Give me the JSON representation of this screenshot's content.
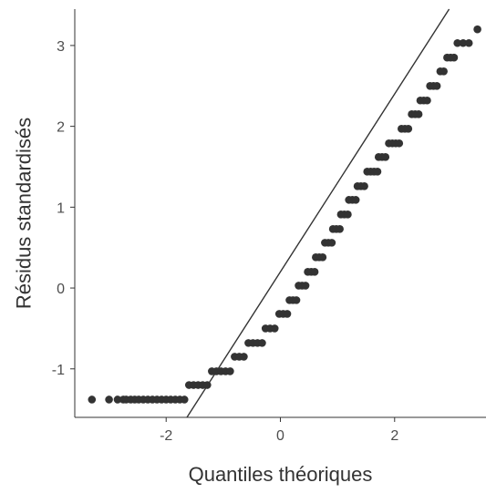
{
  "chart_data": {
    "type": "scatter",
    "title": "",
    "xlabel": "Quantiles théoriques",
    "ylabel": "Résidus standardisés",
    "xlim": [
      -3.6,
      3.6
    ],
    "ylim": [
      -1.6,
      3.45
    ],
    "x_ticks": [
      -2,
      0,
      2
    ],
    "x_tick_labels": [
      "-2",
      "0",
      "2"
    ],
    "y_ticks": [
      -1,
      0,
      1,
      2,
      3
    ],
    "y_tick_labels": [
      "-1",
      "0",
      "1",
      "2",
      "3"
    ],
    "grid": false,
    "legend": "none",
    "reference_line": {
      "slope": 1.1,
      "intercept": 0.2
    },
    "point_color": "#333333",
    "line_color": "#333333",
    "series": [
      {
        "points": [
          [
            -3.3,
            -1.38
          ],
          [
            -3.0,
            -1.38
          ],
          [
            -2.85,
            -1.38
          ],
          [
            -2.75,
            -1.38
          ],
          [
            -2.7,
            -1.38
          ],
          [
            -2.62,
            -1.38
          ],
          [
            -2.55,
            -1.38
          ],
          [
            -2.48,
            -1.38
          ],
          [
            -2.4,
            -1.38
          ],
          [
            -2.32,
            -1.38
          ],
          [
            -2.24,
            -1.38
          ],
          [
            -2.16,
            -1.38
          ],
          [
            -2.08,
            -1.38
          ],
          [
            -2.0,
            -1.38
          ],
          [
            -1.92,
            -1.38
          ],
          [
            -1.84,
            -1.38
          ],
          [
            -1.76,
            -1.38
          ],
          [
            -1.68,
            -1.38
          ],
          [
            -1.6,
            -1.2
          ],
          [
            -1.52,
            -1.2
          ],
          [
            -1.44,
            -1.2
          ],
          [
            -1.36,
            -1.2
          ],
          [
            -1.28,
            -1.2
          ],
          [
            -1.2,
            -1.03
          ],
          [
            -1.12,
            -1.03
          ],
          [
            -1.04,
            -1.03
          ],
          [
            -0.96,
            -1.03
          ],
          [
            -0.88,
            -1.03
          ],
          [
            -0.8,
            -0.85
          ],
          [
            -0.72,
            -0.85
          ],
          [
            -0.64,
            -0.85
          ],
          [
            -0.56,
            -0.68
          ],
          [
            -0.48,
            -0.68
          ],
          [
            -0.4,
            -0.68
          ],
          [
            -0.32,
            -0.68
          ],
          [
            -0.26,
            -0.5
          ],
          [
            -0.18,
            -0.5
          ],
          [
            -0.1,
            -0.5
          ],
          [
            -0.02,
            -0.32
          ],
          [
            0.05,
            -0.32
          ],
          [
            0.12,
            -0.32
          ],
          [
            0.16,
            -0.15
          ],
          [
            0.22,
            -0.15
          ],
          [
            0.28,
            -0.15
          ],
          [
            0.32,
            0.03
          ],
          [
            0.38,
            0.03
          ],
          [
            0.44,
            0.03
          ],
          [
            0.48,
            0.2
          ],
          [
            0.54,
            0.2
          ],
          [
            0.6,
            0.2
          ],
          [
            0.62,
            0.38
          ],
          [
            0.68,
            0.38
          ],
          [
            0.74,
            0.38
          ],
          [
            0.78,
            0.56
          ],
          [
            0.84,
            0.56
          ],
          [
            0.9,
            0.56
          ],
          [
            0.92,
            0.73
          ],
          [
            0.98,
            0.73
          ],
          [
            1.04,
            0.73
          ],
          [
            1.06,
            0.91
          ],
          [
            1.12,
            0.91
          ],
          [
            1.18,
            0.91
          ],
          [
            1.2,
            1.09
          ],
          [
            1.26,
            1.09
          ],
          [
            1.32,
            1.09
          ],
          [
            1.35,
            1.26
          ],
          [
            1.41,
            1.26
          ],
          [
            1.47,
            1.26
          ],
          [
            1.52,
            1.44
          ],
          [
            1.58,
            1.44
          ],
          [
            1.64,
            1.44
          ],
          [
            1.7,
            1.44
          ],
          [
            1.72,
            1.62
          ],
          [
            1.78,
            1.62
          ],
          [
            1.84,
            1.62
          ],
          [
            1.9,
            1.79
          ],
          [
            1.96,
            1.79
          ],
          [
            2.02,
            1.79
          ],
          [
            2.08,
            1.79
          ],
          [
            2.12,
            1.97
          ],
          [
            2.18,
            1.97
          ],
          [
            2.24,
            1.97
          ],
          [
            2.3,
            2.15
          ],
          [
            2.36,
            2.15
          ],
          [
            2.42,
            2.15
          ],
          [
            2.45,
            2.32
          ],
          [
            2.51,
            2.32
          ],
          [
            2.57,
            2.32
          ],
          [
            2.62,
            2.5
          ],
          [
            2.68,
            2.5
          ],
          [
            2.74,
            2.5
          ],
          [
            2.8,
            2.68
          ],
          [
            2.86,
            2.68
          ],
          [
            2.92,
            2.85
          ],
          [
            2.98,
            2.85
          ],
          [
            3.04,
            2.85
          ],
          [
            3.1,
            3.03
          ],
          [
            3.2,
            3.03
          ],
          [
            3.3,
            3.03
          ],
          [
            3.45,
            3.2
          ]
        ]
      }
    ]
  }
}
